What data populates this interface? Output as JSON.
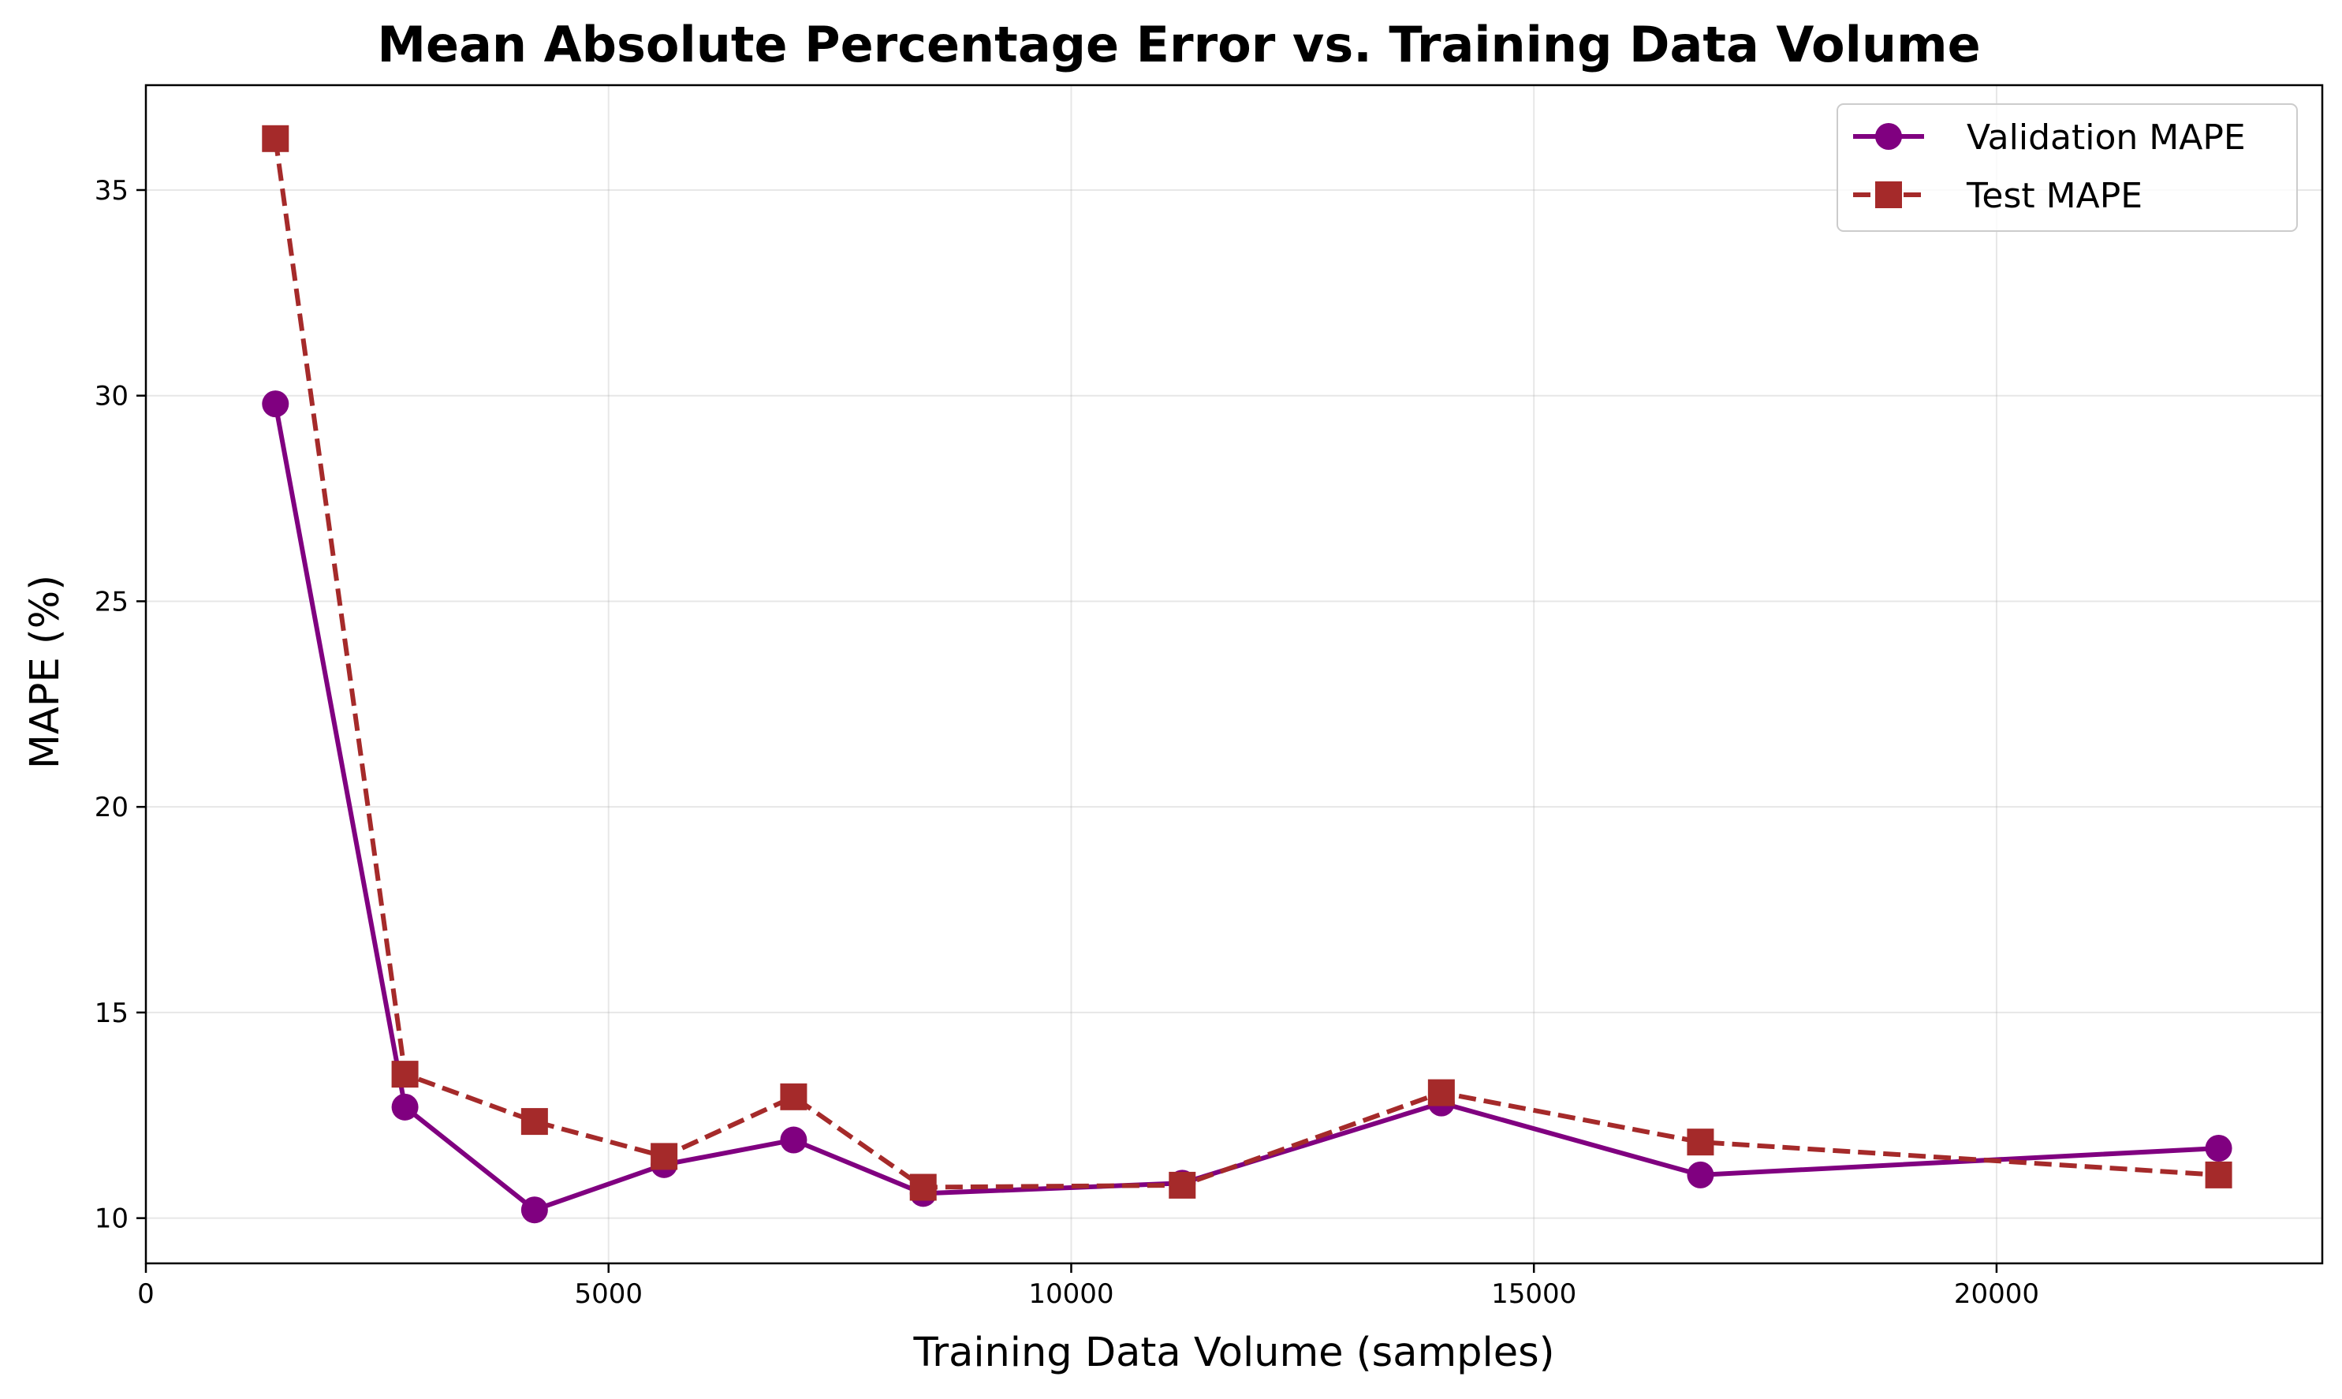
{
  "chart_data": {
    "type": "line",
    "title": "Mean Absolute Percentage Error vs. Training Data Volume",
    "xlabel": "Training Data Volume (samples)",
    "ylabel": "MAPE (%)",
    "xlim": [
      0,
      23520
    ],
    "ylim": [
      8.9,
      37.55
    ],
    "xticks": [
      0,
      5000,
      10000,
      15000,
      20000
    ],
    "yticks": [
      10,
      15,
      20,
      25,
      30,
      35
    ],
    "grid": true,
    "legend_position": "top-right",
    "x": [
      1400,
      2800,
      4200,
      5600,
      7000,
      8400,
      11200,
      14000,
      16800,
      22400
    ],
    "series": [
      {
        "name": "Validation MAPE",
        "color": "#800080",
        "line_style": "solid",
        "marker": "circle",
        "values": [
          29.8,
          12.7,
          10.2,
          11.3,
          11.9,
          10.6,
          10.85,
          12.8,
          11.05,
          11.7
        ]
      },
      {
        "name": "Test MAPE",
        "color": "#a52a2a",
        "line_style": "dashed",
        "marker": "square",
        "values": [
          36.25,
          13.5,
          12.35,
          11.5,
          12.95,
          10.75,
          10.8,
          13.05,
          11.85,
          11.05
        ]
      }
    ]
  }
}
